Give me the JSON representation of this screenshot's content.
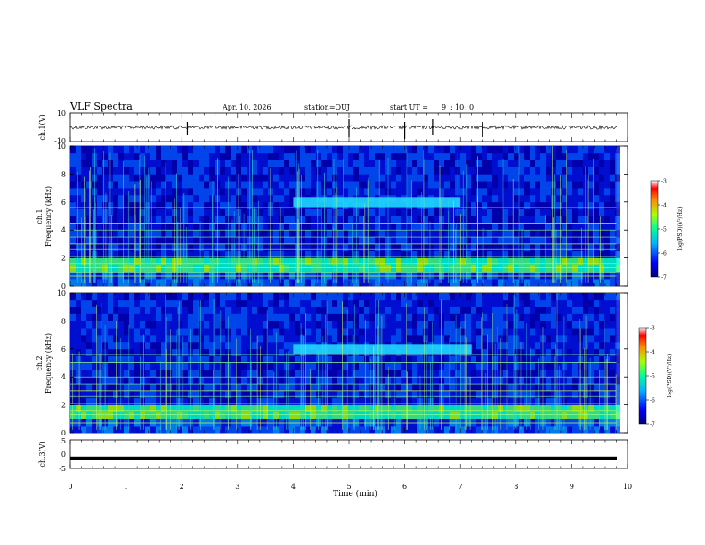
{
  "header": {
    "title": "VLF Spectra",
    "date": "Apr. 10, 2026",
    "station": "station=OUJ",
    "start_label": "start UT =",
    "start_hour": "9",
    "start_min": "10",
    "start_sec": "0"
  },
  "chart_data": [
    {
      "type": "line",
      "name": "ch1-waveform",
      "ylabel": "ch.1(V)",
      "ylim": [
        -10,
        10
      ],
      "yticks": [
        "10",
        "-10"
      ],
      "xlim": [
        0,
        10
      ],
      "baseline": 0,
      "spikes_min": [
        2.1,
        5.0,
        6.0,
        6.5,
        7.4
      ]
    },
    {
      "type": "heatmap",
      "name": "ch1-spectrogram",
      "ylabel_channel": "ch.1",
      "ylabel": "Frequency (kHz)",
      "ylim": [
        0,
        10
      ],
      "yticks": [
        "0",
        "2",
        "4",
        "6",
        "8",
        "10"
      ],
      "xlim": [
        0,
        9.8
      ],
      "colorbar": {
        "label": "log(PSD)(V²/Hz)",
        "range": [
          -7,
          -3
        ],
        "ticks": [
          "-3",
          "-4",
          "-5",
          "-6",
          "-7"
        ]
      },
      "bands_khz": [
        0.7,
        1.0,
        1.3,
        1.6,
        2.1,
        2.6,
        3.0,
        3.5,
        4.0,
        4.5,
        5.0,
        5.6
      ],
      "hiss_band_khz": [
        1.0,
        2.0
      ],
      "tone_band": {
        "f_khz": 6.0,
        "t_min": [
          4.0,
          7.0
        ]
      }
    },
    {
      "type": "heatmap",
      "name": "ch2-spectrogram",
      "ylabel_channel": "ch.2",
      "ylabel": "Frequency (kHz)",
      "ylim": [
        0,
        10
      ],
      "yticks": [
        "0",
        "2",
        "4",
        "6",
        "8",
        "10"
      ],
      "xlim": [
        0,
        9.8
      ],
      "colorbar": {
        "label": "log(PSD)(V²/Hz)",
        "range": [
          -7,
          -3
        ],
        "ticks": [
          "-3",
          "-4",
          "-5",
          "-6",
          "-7"
        ]
      },
      "bands_khz": [
        0.7,
        1.0,
        1.3,
        1.6,
        2.1,
        2.6,
        3.0,
        3.5,
        4.0,
        4.5,
        5.0,
        5.6
      ],
      "hiss_band_khz": [
        1.0,
        2.0
      ],
      "tone_band": {
        "f_khz": 6.0,
        "t_min": [
          4.0,
          7.2
        ]
      }
    },
    {
      "type": "line",
      "name": "ch3-waveform",
      "ylabel": "ch.3(V)",
      "ylim": [
        -5,
        5
      ],
      "yticks": [
        "5",
        "0",
        "-5"
      ],
      "xlim": [
        0,
        10
      ],
      "level": -1.5
    }
  ],
  "x_axis": {
    "label": "Time (min)",
    "range": [
      0,
      10
    ],
    "ticks": [
      "0",
      "1",
      "2",
      "3",
      "4",
      "5",
      "6",
      "7",
      "8",
      "9",
      "10"
    ]
  }
}
